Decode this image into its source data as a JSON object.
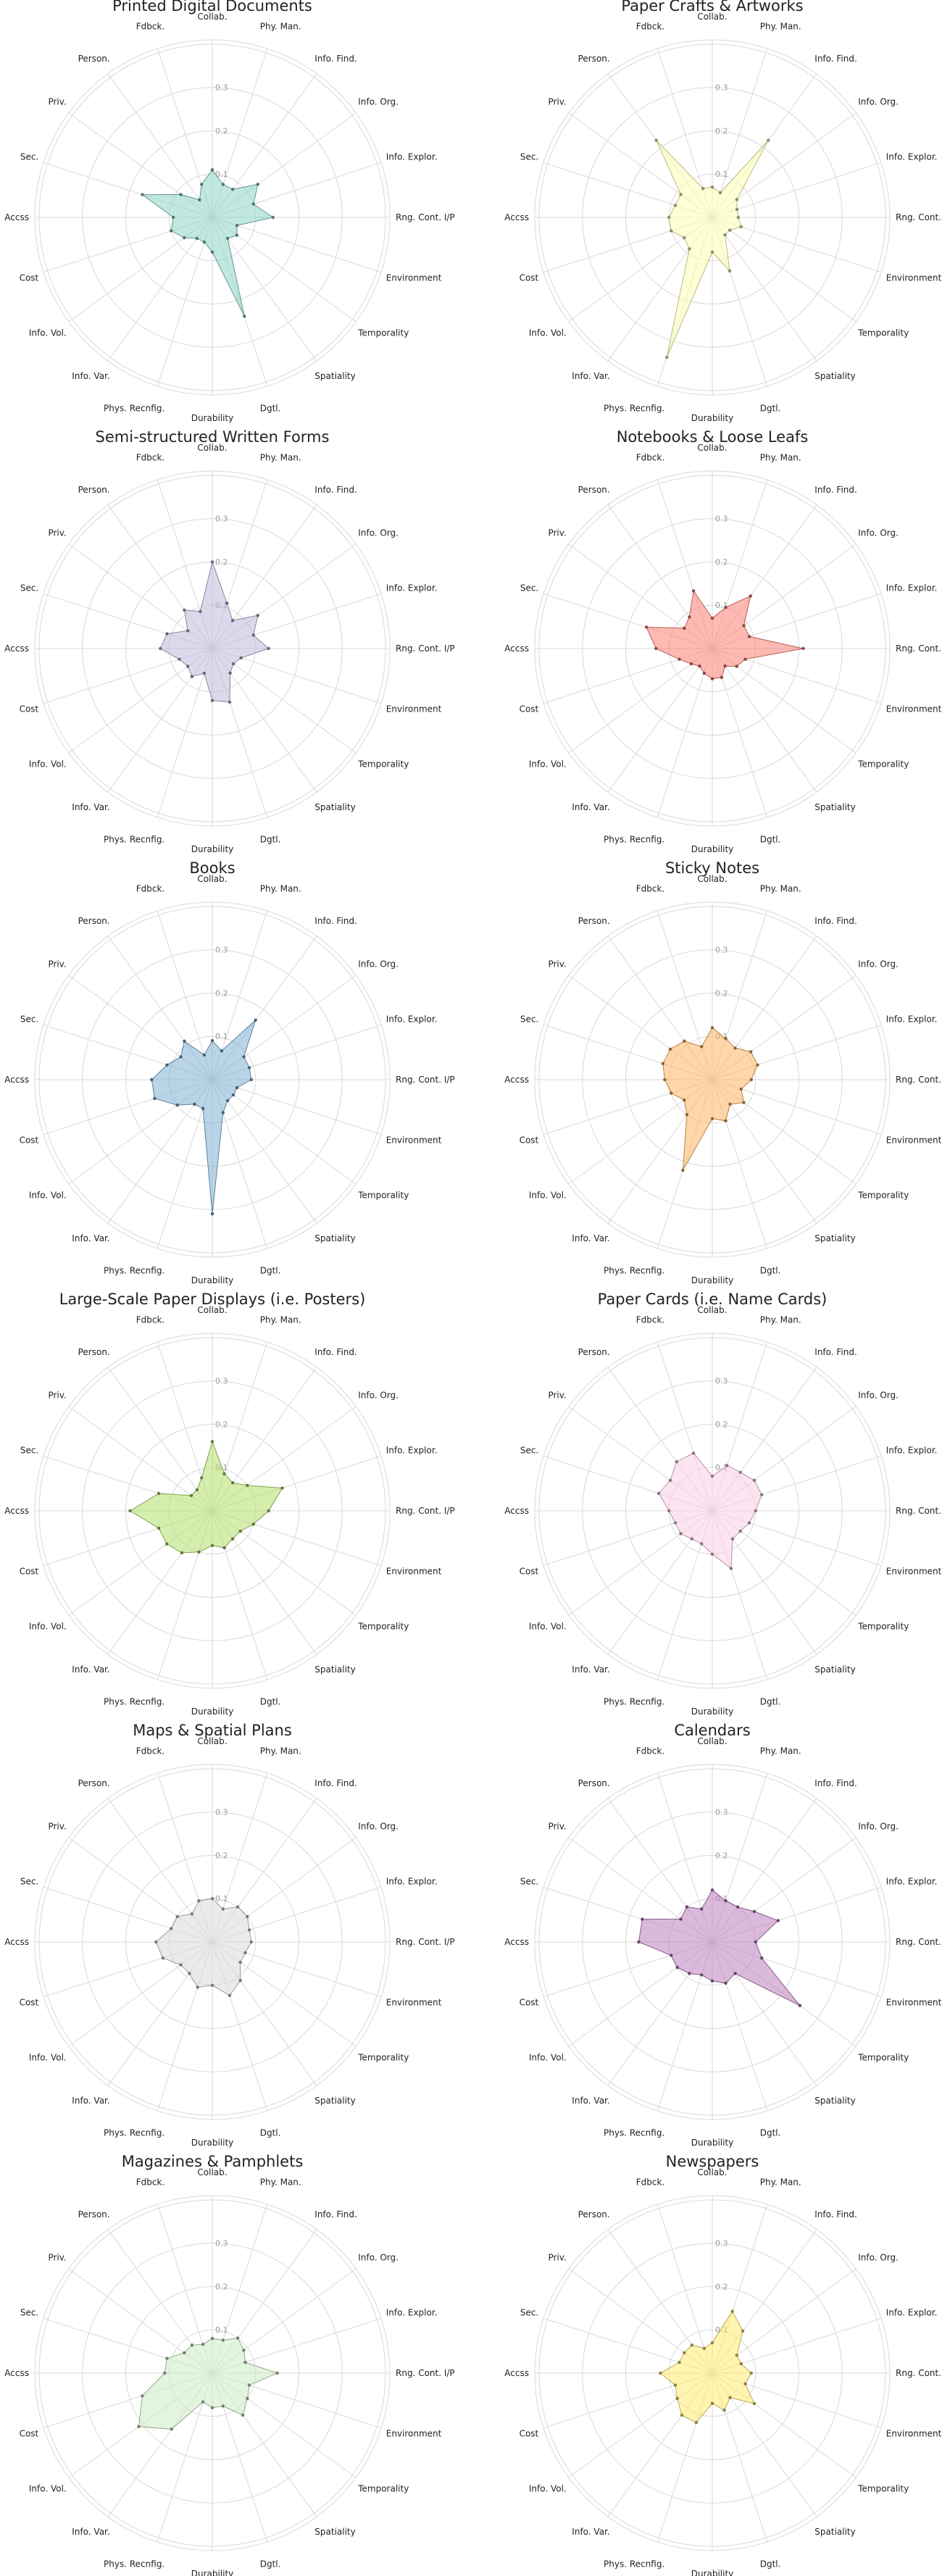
{
  "chart_data": {
    "type": "radar",
    "axes": [
      "Collab.",
      "Phy. Man.",
      "Info. Find.",
      "Info. Org.",
      "Info. Explor.",
      "Rng. Cont. I/P",
      "Environment",
      "Temporality",
      "Spatiality",
      "Dgtl.",
      "Durability",
      "Phys. Recnfig.",
      "Info. Var.",
      "Info. Vol.",
      "Cost",
      "Accss",
      "Sec.",
      "Priv.",
      "Person.",
      "Fdbck."
    ],
    "r_ticks": [
      0.1,
      0.2,
      0.3
    ],
    "r_tick_labels": [
      "0.1",
      "0.2",
      "0.3"
    ],
    "rlim": [
      0,
      0.41
    ],
    "grid": true,
    "panels": [
      {
        "title": "Printed Digital Documents",
        "color": "#8dd3c7",
        "values": [
          0.11,
          0.08,
          0.08,
          0.13,
          0.1,
          0.14,
          0.06,
          0.07,
          0.06,
          0.24,
          0.08,
          0.06,
          0.06,
          0.08,
          0.1,
          0.09,
          0.17,
          0.09,
          0.05,
          0.08
        ]
      },
      {
        "title": "Paper Crafts & Artworks",
        "color": "#ffffb3",
        "values": [
          0.07,
          0.06,
          0.22,
          0.07,
          0.06,
          0.06,
          0.07,
          0.05,
          0.05,
          0.13,
          0.08,
          0.34,
          0.09,
          0.08,
          0.1,
          0.1,
          0.09,
          0.09,
          0.22,
          0.07
        ]
      },
      {
        "title": "Semi-structured Written Forms",
        "color": "#bebada",
        "values": [
          0.2,
          0.11,
          0.08,
          0.13,
          0.1,
          0.13,
          0.07,
          0.06,
          0.07,
          0.13,
          0.12,
          0.06,
          0.08,
          0.07,
          0.08,
          0.12,
          0.11,
          0.07,
          0.11,
          0.09
        ]
      },
      {
        "title": "Notebooks & Loose Leafs",
        "color": "#fb8072",
        "values": [
          0.07,
          0.1,
          0.15,
          0.09,
          0.09,
          0.21,
          0.08,
          0.07,
          0.05,
          0.07,
          0.07,
          0.06,
          0.05,
          0.06,
          0.08,
          0.13,
          0.16,
          0.08,
          0.09,
          0.14
        ]
      },
      {
        "title": "Books",
        "color": "#80b1d3",
        "values": [
          0.09,
          0.07,
          0.17,
          0.09,
          0.09,
          0.09,
          0.06,
          0.06,
          0.06,
          0.08,
          0.31,
          0.07,
          0.07,
          0.1,
          0.14,
          0.14,
          0.11,
          0.09,
          0.11,
          0.06
        ]
      },
      {
        "title": "Sticky Notes",
        "color": "#fdb462",
        "values": [
          0.12,
          0.1,
          0.09,
          0.11,
          0.11,
          0.09,
          0.07,
          0.09,
          0.07,
          0.1,
          0.09,
          0.22,
          0.1,
          0.08,
          0.1,
          0.11,
          0.12,
          0.12,
          0.11,
          0.08
        ]
      },
      {
        "title": "Large-Scale Paper Displays (i.e. Posters)",
        "color": "#b3de69",
        "values": [
          0.16,
          0.09,
          0.08,
          0.1,
          0.17,
          0.13,
          0.1,
          0.08,
          0.08,
          0.09,
          0.08,
          0.1,
          0.12,
          0.13,
          0.13,
          0.19,
          0.13,
          0.06,
          0.06,
          0.08
        ]
      },
      {
        "title": "Paper Cards (i.e. Name Cards)",
        "color": "#fccde5",
        "values": [
          0.08,
          0.11,
          0.11,
          0.12,
          0.12,
          0.1,
          0.09,
          0.08,
          0.08,
          0.14,
          0.1,
          0.08,
          0.08,
          0.09,
          0.09,
          0.1,
          0.13,
          0.12,
          0.14,
          0.14
        ]
      },
      {
        "title": "Maps & Spatial Plans",
        "color": "#d9d9d9",
        "values": [
          0.1,
          0.08,
          0.1,
          0.1,
          0.09,
          0.09,
          0.08,
          0.08,
          0.11,
          0.13,
          0.1,
          0.11,
          0.09,
          0.09,
          0.12,
          0.13,
          0.1,
          0.1,
          0.08,
          0.1
        ]
      },
      {
        "title": "Calendars",
        "color": "#bc80bd",
        "values": [
          0.12,
          0.1,
          0.1,
          0.12,
          0.16,
          0.1,
          0.12,
          0.25,
          0.09,
          0.1,
          0.09,
          0.08,
          0.09,
          0.1,
          0.1,
          0.17,
          0.17,
          0.09,
          0.1,
          0.08
        ]
      },
      {
        "title": "Magazines & Pamphlets",
        "color": "#ccebc5",
        "values": [
          0.08,
          0.08,
          0.1,
          0.09,
          0.08,
          0.15,
          0.09,
          0.1,
          0.12,
          0.08,
          0.08,
          0.07,
          0.16,
          0.21,
          0.17,
          0.11,
          0.11,
          0.08,
          0.08,
          0.07
        ]
      },
      {
        "title": "Newspapers",
        "color": "#ffed6f",
        "values": [
          0.07,
          0.15,
          0.12,
          0.07,
          0.07,
          0.09,
          0.08,
          0.12,
          0.07,
          0.09,
          0.07,
          0.12,
          0.12,
          0.1,
          0.09,
          0.12,
          0.08,
          0.08,
          0.08,
          0.06
        ]
      }
    ]
  }
}
